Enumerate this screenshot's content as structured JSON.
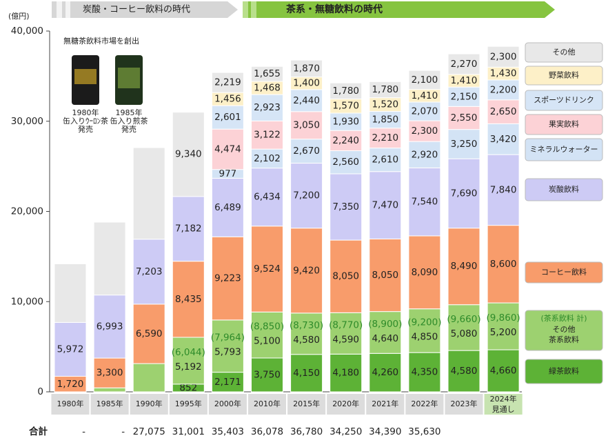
{
  "chart_data": {
    "type": "bar",
    "stacked": true,
    "eras": [
      "炭酸・コーヒー飲料の時代",
      "茶系・無糖飲料の時代"
    ],
    "y_unit": "(億円)",
    "note": "無糖茶飲料市場を創出",
    "products": [
      "1980年\n缶入りｳｰﾛﾝ茶\n発売",
      "1985年\n缶入り煎茶\n発売"
    ],
    "categories": [
      "1980年",
      "1985年",
      "1990年",
      "1995年",
      "2000年",
      "2010年",
      "2015年",
      "2020年",
      "2021年",
      "2022年",
      "2023年",
      "2024年\n見通し"
    ],
    "ylim": [
      0,
      40000
    ],
    "yticks": [
      0,
      {
        "value": 10000,
        "label": "10,000"
      },
      {
        "value": 20000,
        "label": "20,000"
      },
      {
        "value": 30000,
        "label": "30,000"
      },
      {
        "value": 40000,
        "label": "40,000"
      }
    ],
    "series": [
      {
        "name": "緑茶飲料",
        "color": "#5db236",
        "values": [
          null,
          null,
          null,
          852,
          2171,
          3750,
          4150,
          4180,
          4260,
          4350,
          4580,
          4660
        ],
        "value_labels": [
          null,
          null,
          null,
          "852",
          "2,171",
          "3,750",
          "4,150",
          "4,180",
          "4,260",
          "4,350",
          "4,580",
          "4,660"
        ]
      },
      {
        "name": "その他\n茶系飲料",
        "color": "#9dd170",
        "values": [
          null,
          440,
          3130,
          5192,
          5793,
          5100,
          4580,
          4590,
          4640,
          4850,
          5080,
          5200
        ],
        "value_labels": [
          null,
          null,
          null,
          "5,192",
          "5,793",
          "5,100",
          "4,580",
          "4,590",
          "4,640",
          "4,850",
          "5,080",
          "5,200"
        ]
      },
      {
        "name": "コーヒー飲料",
        "color": "#f89c6b",
        "values": [
          1720,
          3300,
          6590,
          8435,
          9223,
          9524,
          9420,
          8050,
          8050,
          8090,
          8490,
          8600
        ],
        "value_labels": [
          "1,720",
          "3,300",
          "6,590",
          "8,435",
          "9,223",
          "9,524",
          "9,420",
          "8,050",
          "8,050",
          "8,090",
          "8,490",
          "8,600"
        ]
      },
      {
        "name": "炭酸飲料",
        "color": "#cdcbf5",
        "values": [
          5972,
          6993,
          7203,
          7182,
          6489,
          6434,
          7200,
          7350,
          7470,
          7540,
          7690,
          7840
        ],
        "value_labels": [
          "5,972",
          "6,993",
          "7,203",
          "7,182",
          "6,489",
          "6,434",
          "7,200",
          "7,350",
          "7,470",
          "7,540",
          "7,690",
          "7,840"
        ]
      },
      {
        "name": "ミネラルウォーター",
        "color": "#d3e3f5",
        "values": [
          null,
          null,
          null,
          null,
          977,
          2102,
          2670,
          2560,
          2610,
          2920,
          3250,
          3420
        ],
        "value_labels": [
          null,
          null,
          null,
          null,
          "977",
          "2,102",
          "2,670",
          "2,560",
          "2,610",
          "2,920",
          "3,250",
          "3,420"
        ]
      },
      {
        "name": "果実飲料",
        "color": "#fcd2d6",
        "values": [
          null,
          null,
          null,
          null,
          4474,
          3122,
          3050,
          2240,
          2210,
          2300,
          2550,
          2650
        ],
        "value_labels": [
          null,
          null,
          null,
          null,
          "4,474",
          "3,122",
          "3,050",
          "2,240",
          "2,210",
          "2,300",
          "2,550",
          "2,650"
        ]
      },
      {
        "name": "スポーツドリンク",
        "color": "#d6e5f6",
        "values": [
          null,
          null,
          null,
          null,
          2601,
          2923,
          2440,
          1930,
          1850,
          2070,
          2150,
          2200
        ],
        "value_labels": [
          null,
          null,
          null,
          null,
          "2,601",
          "2,923",
          "2,440",
          "1,930",
          "1,850",
          "2,070",
          "2,150",
          "2,200"
        ]
      },
      {
        "name": "野菜飲料",
        "color": "#fdf0c8",
        "values": [
          null,
          null,
          null,
          null,
          1456,
          1468,
          1400,
          1570,
          1520,
          1410,
          1410,
          1430
        ],
        "value_labels": [
          null,
          null,
          null,
          null,
          "1,456",
          "1,468",
          "1,400",
          "1,570",
          "1,520",
          "1,410",
          "1,410",
          "1,430"
        ]
      },
      {
        "name": "その他",
        "color": "#e8e8e8",
        "values": [
          6500,
          8080,
          10152,
          9340,
          2219,
          1655,
          1870,
          1780,
          1780,
          2100,
          2270,
          2300
        ],
        "value_labels": [
          null,
          null,
          null,
          "9,340",
          "2,219",
          "1,655",
          "1,870",
          "1,780",
          "1,780",
          "2,100",
          "2,270",
          "2,300"
        ]
      }
    ],
    "tea_total": {
      "name": "(茶系飲料 計)",
      "color": "#2e8b2a",
      "values": [
        null,
        null,
        null,
        6044,
        7964,
        8850,
        8730,
        8770,
        8900,
        9200,
        9660,
        9860
      ],
      "value_labels": [
        null,
        null,
        null,
        "(6,044)",
        "(7,964)",
        "(8,850)",
        "(8,730)",
        "(8,770)",
        "(8,900)",
        "(9,200)",
        "(9,660)",
        "(9,860)"
      ]
    },
    "totals_label": "合計",
    "totals": [
      "-",
      "-",
      "27,075",
      "31,001",
      "35,403",
      "36,078",
      "36,780",
      "34,250",
      "34,390",
      "35,630",
      null,
      null
    ]
  }
}
